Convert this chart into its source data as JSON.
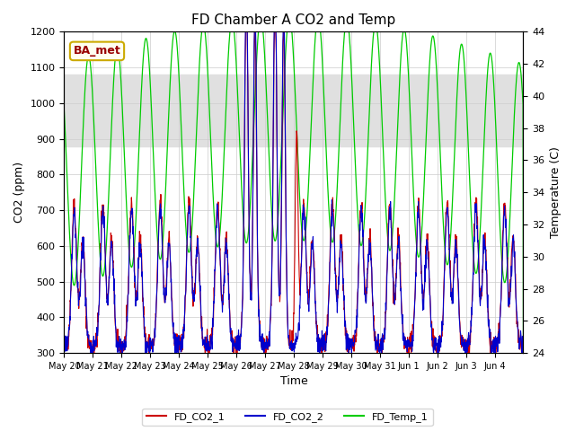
{
  "title": "FD Chamber A CO2 and Temp",
  "ylabel_left": "CO2 (ppm)",
  "ylabel_right": "Temperature (C)",
  "xlabel": "Time",
  "ylim_left": [
    300,
    1200
  ],
  "ylim_right": [
    24,
    44
  ],
  "annotation": "BA_met",
  "background_band": [
    880,
    1080
  ],
  "x_tick_labels": [
    "May 20",
    "May 21",
    "May 22",
    "May 23",
    "May 24",
    "May 25",
    "May 26",
    "May 27",
    "May 28",
    "May 29",
    "May 30",
    "May 31",
    "Jun 1",
    "Jun 2",
    "Jun 3",
    "Jun 4"
  ],
  "legend_labels": [
    "FD_CO2_1",
    "FD_CO2_2",
    "FD_Temp_1"
  ],
  "legend_colors": [
    "#cc0000",
    "#0000cc",
    "#00cc00"
  ],
  "color_co2_1": "#cc0000",
  "color_co2_2": "#0000cc",
  "color_temp": "#00cc00",
  "grid_color": "#cccccc",
  "band_color": "#e0e0e0",
  "fig_bg": "#ffffff",
  "annotation_facecolor": "#fffff0",
  "annotation_edgecolor": "#ccaa00",
  "annotation_textcolor": "#990000"
}
